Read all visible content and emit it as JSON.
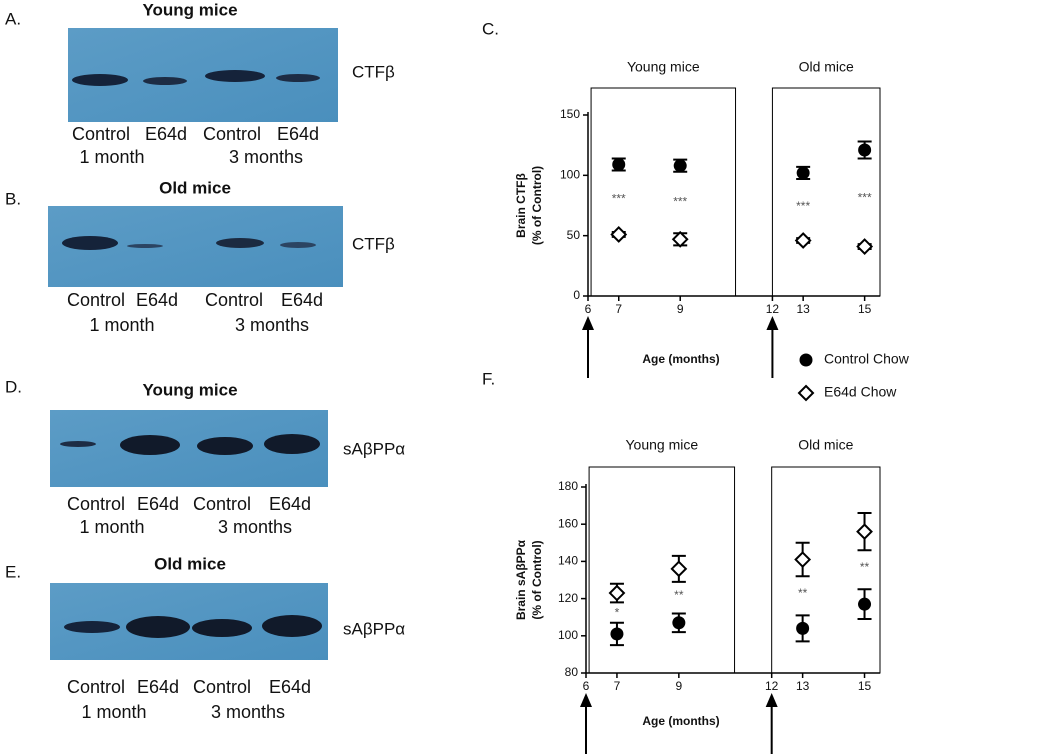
{
  "blots": [
    {
      "label": "A.",
      "title": "Young mice",
      "protein": "CTFβ",
      "lanes": [
        "Control",
        "E64d",
        "Control",
        "E64d"
      ],
      "groups": [
        "1 month",
        "3 months"
      ]
    },
    {
      "label": "B.",
      "title": "Old mice",
      "protein": "CTFβ",
      "lanes": [
        "Control",
        "E64d",
        "Control",
        "E64d"
      ],
      "groups": [
        "1 month",
        "3 months"
      ]
    },
    {
      "label": "D.",
      "title": "Young mice",
      "protein": "sAβPPα",
      "lanes": [
        "Control",
        "E64d",
        "Control",
        "E64d"
      ],
      "groups": [
        "1 month",
        "3 months"
      ]
    },
    {
      "label": "E.",
      "title": "Old mice",
      "protein": "sAβPPα",
      "lanes": [
        "Control",
        "E64d",
        "Control",
        "E64d"
      ],
      "groups": [
        "1 month",
        "3 months"
      ]
    }
  ],
  "chart_data": [
    {
      "type": "scatter",
      "label": "C.",
      "ylabel": [
        "Brain CTFβ",
        "(% of Control)"
      ],
      "xlabel": "Age (months)",
      "regions": [
        "Young mice",
        "Old mice"
      ],
      "x": [
        7,
        9,
        13,
        15
      ],
      "xlim": [
        6,
        15.5
      ],
      "xticks": [
        6,
        7,
        9,
        12,
        13,
        15
      ],
      "ylim": [
        0,
        150
      ],
      "yticks": [
        0,
        50,
        100,
        150
      ],
      "series": [
        {
          "name": "Control Chow",
          "color": "#000000",
          "marker": "circle",
          "values": [
            109,
            108,
            102,
            121
          ],
          "errors": [
            5,
            5,
            5,
            7
          ]
        },
        {
          "name": "E64d Chow",
          "color": "#000000",
          "marker": "diamond",
          "values": [
            51,
            47,
            46,
            41
          ],
          "errors": [
            2,
            5,
            2,
            2
          ]
        }
      ],
      "annotations": [
        "***",
        "***",
        "***",
        "***"
      ]
    },
    {
      "type": "scatter",
      "label": "F.",
      "ylabel": [
        "Brain sAβPPα",
        "(% of Control)"
      ],
      "xlabel": "Age (months)",
      "regions": [
        "Young mice",
        "Old mice"
      ],
      "x": [
        7,
        9,
        13,
        15
      ],
      "xlim": [
        6,
        15.5
      ],
      "xticks": [
        6,
        7,
        9,
        12,
        13,
        15
      ],
      "ylim": [
        80,
        180
      ],
      "yticks": [
        80,
        100,
        120,
        140,
        160,
        180
      ],
      "series": [
        {
          "color": "#000000",
          "marker": "circle",
          "values": [
            101,
            107,
            104,
            117
          ],
          "errors": [
            6,
            5,
            7,
            8
          ]
        },
        {
          "color": "#000000",
          "marker": "diamond",
          "values": [
            123,
            136,
            141,
            156
          ],
          "errors": [
            5,
            7,
            9,
            10
          ]
        }
      ],
      "annotations": [
        "*",
        "**",
        "**",
        "**"
      ]
    }
  ]
}
